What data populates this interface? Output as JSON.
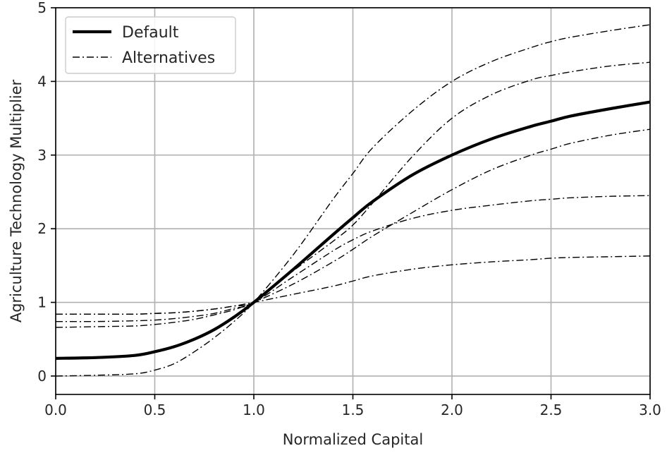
{
  "chart_data": {
    "type": "line",
    "xlabel": "Normalized Capital",
    "ylabel": "Agriculture Technology Multiplier",
    "xlim": [
      0,
      3
    ],
    "ylim": [
      -0.25,
      5
    ],
    "xticks": [
      "0.0",
      "0.5",
      "1.0",
      "1.5",
      "2.0",
      "2.5",
      "3.0"
    ],
    "yticks": [
      "0",
      "1",
      "2",
      "3",
      "4",
      "5"
    ],
    "grid": true,
    "legend_position": "top-left",
    "legend": [
      {
        "label": "Default",
        "style": "solid-thick"
      },
      {
        "label": "Alternatives",
        "style": "dashdot-thin"
      }
    ],
    "x": [
      0,
      0.2,
      0.4,
      0.5,
      0.6,
      0.7,
      0.8,
      0.9,
      1.0,
      1.2,
      1.4,
      1.5,
      1.6,
      1.8,
      2.0,
      2.2,
      2.4,
      2.5,
      2.6,
      2.8,
      3.0
    ],
    "series": [
      {
        "group": "Default",
        "values": [
          0.24,
          0.25,
          0.28,
          0.33,
          0.4,
          0.5,
          0.63,
          0.8,
          1.0,
          1.45,
          1.92,
          2.15,
          2.37,
          2.73,
          3.0,
          3.22,
          3.39,
          3.46,
          3.53,
          3.63,
          3.72
        ]
      },
      {
        "group": "Alternatives",
        "values": [
          0.0,
          0.01,
          0.03,
          0.08,
          0.17,
          0.33,
          0.52,
          0.74,
          1.0,
          1.65,
          2.4,
          2.75,
          3.1,
          3.6,
          4.0,
          4.27,
          4.46,
          4.54,
          4.6,
          4.69,
          4.77
        ]
      },
      {
        "group": "Alternatives",
        "values": [
          0.66,
          0.67,
          0.68,
          0.7,
          0.73,
          0.77,
          0.83,
          0.9,
          1.0,
          1.25,
          1.55,
          1.72,
          1.9,
          2.22,
          2.53,
          2.8,
          3.0,
          3.08,
          3.16,
          3.27,
          3.35
        ]
      },
      {
        "group": "Alternatives",
        "values": [
          0.74,
          0.74,
          0.75,
          0.76,
          0.78,
          0.81,
          0.85,
          0.92,
          1.0,
          1.43,
          1.83,
          2.05,
          2.35,
          2.98,
          3.5,
          3.82,
          4.02,
          4.08,
          4.13,
          4.21,
          4.26
        ]
      },
      {
        "group": "Alternatives",
        "values": [
          0.84,
          0.84,
          0.84,
          0.85,
          0.86,
          0.88,
          0.91,
          0.95,
          1.0,
          1.35,
          1.7,
          1.85,
          1.97,
          2.14,
          2.25,
          2.32,
          2.38,
          2.4,
          2.42,
          2.44,
          2.45
        ]
      },
      {
        "group": "Alternatives",
        "values": [
          0.84,
          0.84,
          0.84,
          0.85,
          0.86,
          0.88,
          0.91,
          0.95,
          1.0,
          1.11,
          1.22,
          1.29,
          1.36,
          1.45,
          1.51,
          1.55,
          1.58,
          1.6,
          1.61,
          1.62,
          1.63
        ]
      }
    ]
  }
}
